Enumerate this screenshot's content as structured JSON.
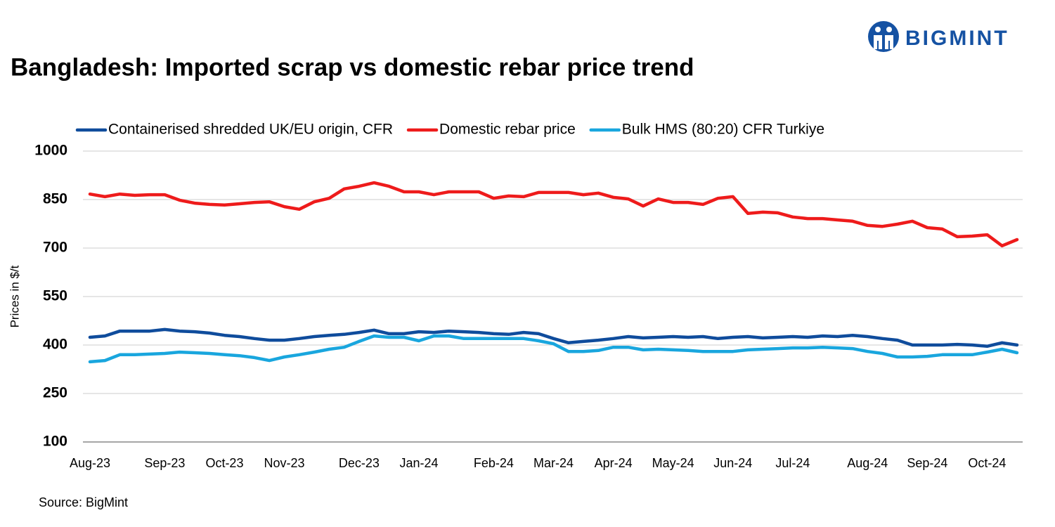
{
  "chart_data": {
    "type": "line",
    "brand": "BIGMINT",
    "title": "Bangladesh: Imported scrap vs domestic rebar price trend",
    "ylabel": "Prices in $/t",
    "source": "Source: BigMint",
    "categories": [
      "Aug-23",
      null,
      null,
      null,
      null,
      "Sep-23",
      null,
      null,
      null,
      "Oct-23",
      null,
      null,
      null,
      "Nov-23",
      null,
      null,
      null,
      null,
      "Dec-23",
      null,
      null,
      null,
      "Jan-24",
      null,
      null,
      null,
      null,
      "Feb-24",
      null,
      null,
      null,
      "Mar-24",
      null,
      null,
      null,
      "Apr-24",
      null,
      null,
      null,
      "May-24",
      null,
      null,
      null,
      "Jun-24",
      null,
      null,
      null,
      "Jul-24",
      null,
      null,
      null,
      null,
      "Aug-24",
      null,
      null,
      null,
      "Sep-24",
      null,
      null,
      null,
      "Oct-24",
      null,
      null
    ],
    "series": [
      {
        "name": "Containerised shredded UK/EU origin, CFR",
        "color": "#0f4c9c",
        "values": [
          424,
          428,
          443,
          443,
          443,
          448,
          443,
          441,
          437,
          430,
          426,
          420,
          415,
          415,
          420,
          426,
          430,
          433,
          439,
          446,
          435,
          435,
          441,
          439,
          443,
          441,
          439,
          435,
          433,
          439,
          435,
          420,
          407,
          411,
          415,
          420,
          426,
          422,
          424,
          426,
          424,
          426,
          420,
          424,
          426,
          422,
          424,
          426,
          424,
          428,
          426,
          430,
          426,
          420,
          415,
          400,
          400,
          400,
          402,
          400,
          396,
          407,
          400
        ]
      },
      {
        "name": "Domestic rebar price",
        "color": "#ee1b1b",
        "values": [
          867,
          859,
          867,
          863,
          865,
          865,
          848,
          839,
          835,
          833,
          837,
          841,
          843,
          828,
          820,
          843,
          854,
          883,
          891,
          902,
          891,
          874,
          874,
          865,
          874,
          874,
          874,
          854,
          861,
          859,
          872,
          872,
          872,
          865,
          870,
          857,
          852,
          830,
          852,
          841,
          841,
          835,
          854,
          859,
          807,
          811,
          809,
          796,
          791,
          791,
          787,
          783,
          770,
          767,
          774,
          783,
          763,
          759,
          735,
          737,
          741,
          707,
          726
        ]
      },
      {
        "name": "Bulk HMS (80:20) CFR Turkiye",
        "color": "#19a6de",
        "values": [
          348,
          352,
          370,
          370,
          372,
          374,
          378,
          376,
          374,
          370,
          367,
          361,
          352,
          363,
          370,
          378,
          387,
          393,
          411,
          428,
          424,
          424,
          413,
          428,
          428,
          420,
          420,
          420,
          420,
          420,
          413,
          404,
          380,
          380,
          383,
          393,
          393,
          385,
          387,
          385,
          383,
          380,
          380,
          380,
          385,
          387,
          389,
          391,
          391,
          393,
          391,
          389,
          380,
          374,
          363,
          363,
          365,
          370,
          370,
          370,
          378,
          387,
          376
        ]
      }
    ],
    "ylim": [
      100,
      1000
    ],
    "yticks": [
      100,
      250,
      400,
      550,
      700,
      850,
      1000
    ],
    "grid": true
  }
}
